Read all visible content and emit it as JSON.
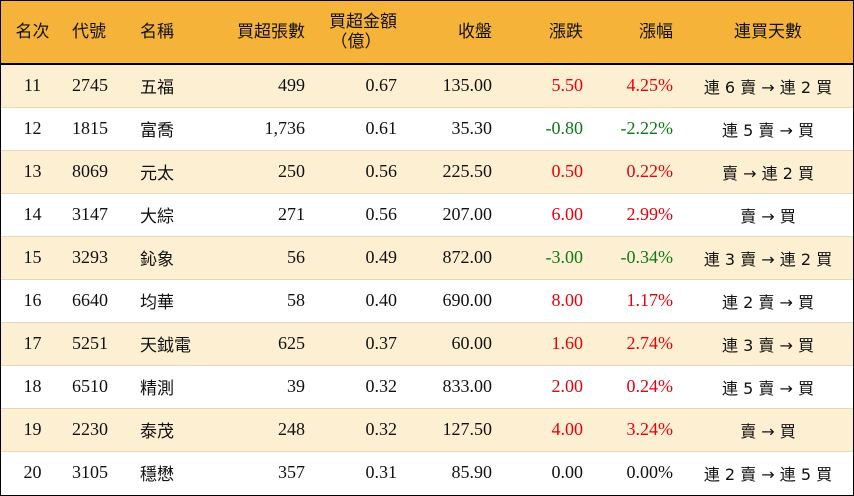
{
  "headers": {
    "rank": "名次",
    "code": "代號",
    "name": "名稱",
    "net_buy_lots": "買超張數",
    "net_buy_amount_line1": "買超金額",
    "net_buy_amount_line2": "（億）",
    "close": "收盤",
    "change": "漲跌",
    "change_pct": "漲幅",
    "consecutive_buy_days": "連買天數"
  },
  "colors": {
    "header_bg": "#f6b33a",
    "odd_row_bg": "#fdf0d2",
    "up": "#e8000b",
    "down": "#0b7a16",
    "flat": "#111111"
  },
  "rows": [
    {
      "rank": "11",
      "code": "2745",
      "name": "五福",
      "lots": "499",
      "amount": "0.67",
      "close": "135.00",
      "change": "5.50",
      "pct": "4.25%",
      "dir": "up",
      "days": "連 6 賣 → 連 2 買"
    },
    {
      "rank": "12",
      "code": "1815",
      "name": "富喬",
      "lots": "1,736",
      "amount": "0.61",
      "close": "35.30",
      "change": "-0.80",
      "pct": "-2.22%",
      "dir": "down",
      "days": "連 5 賣 → 買"
    },
    {
      "rank": "13",
      "code": "8069",
      "name": "元太",
      "lots": "250",
      "amount": "0.56",
      "close": "225.50",
      "change": "0.50",
      "pct": "0.22%",
      "dir": "up",
      "days": "賣 → 連 2 買"
    },
    {
      "rank": "14",
      "code": "3147",
      "name": "大綜",
      "lots": "271",
      "amount": "0.56",
      "close": "207.00",
      "change": "6.00",
      "pct": "2.99%",
      "dir": "up",
      "days": "賣 → 買"
    },
    {
      "rank": "15",
      "code": "3293",
      "name": "鈊象",
      "lots": "56",
      "amount": "0.49",
      "close": "872.00",
      "change": "-3.00",
      "pct": "-0.34%",
      "dir": "down",
      "days": "連 3 賣 → 連 2 買"
    },
    {
      "rank": "16",
      "code": "6640",
      "name": "均華",
      "lots": "58",
      "amount": "0.40",
      "close": "690.00",
      "change": "8.00",
      "pct": "1.17%",
      "dir": "up",
      "days": "連 2 賣 → 買"
    },
    {
      "rank": "17",
      "code": "5251",
      "name": "天鉞電",
      "lots": "625",
      "amount": "0.37",
      "close": "60.00",
      "change": "1.60",
      "pct": "2.74%",
      "dir": "up",
      "days": "連 3 賣 → 買"
    },
    {
      "rank": "18",
      "code": "6510",
      "name": "精測",
      "lots": "39",
      "amount": "0.32",
      "close": "833.00",
      "change": "2.00",
      "pct": "0.24%",
      "dir": "up",
      "days": "連 5 賣 → 買"
    },
    {
      "rank": "19",
      "code": "2230",
      "name": "泰茂",
      "lots": "248",
      "amount": "0.32",
      "close": "127.50",
      "change": "4.00",
      "pct": "3.24%",
      "dir": "up",
      "days": "賣 → 買"
    },
    {
      "rank": "20",
      "code": "3105",
      "name": "穩懋",
      "lots": "357",
      "amount": "0.31",
      "close": "85.90",
      "change": "0.00",
      "pct": "0.00%",
      "dir": "flat",
      "days": "連 2 賣 → 連 5 買"
    }
  ]
}
